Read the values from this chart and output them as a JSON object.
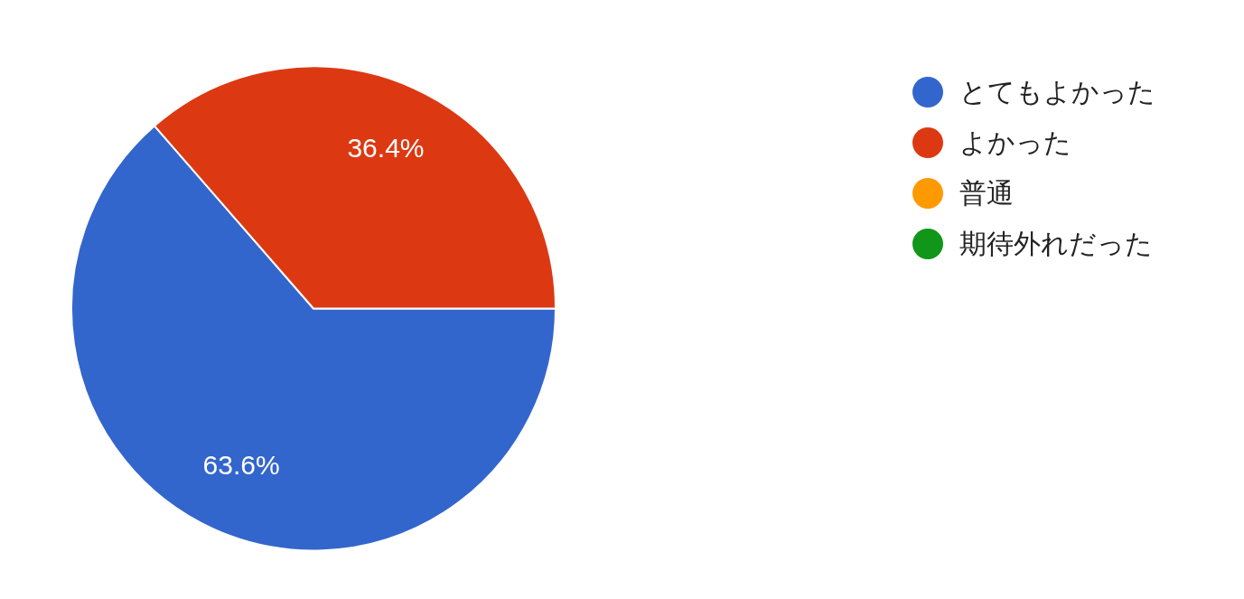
{
  "chart_data": {
    "type": "pie",
    "categories": [
      "とてもよかった",
      "よかった",
      "普通",
      "期待外れだった"
    ],
    "values": [
      63.6,
      36.4,
      0,
      0
    ],
    "colors": [
      "#3366cc",
      "#dc3912",
      "#ff9900",
      "#109618"
    ],
    "value_labels": [
      "63.6%",
      "36.4%",
      null,
      null
    ],
    "legend": "right"
  }
}
